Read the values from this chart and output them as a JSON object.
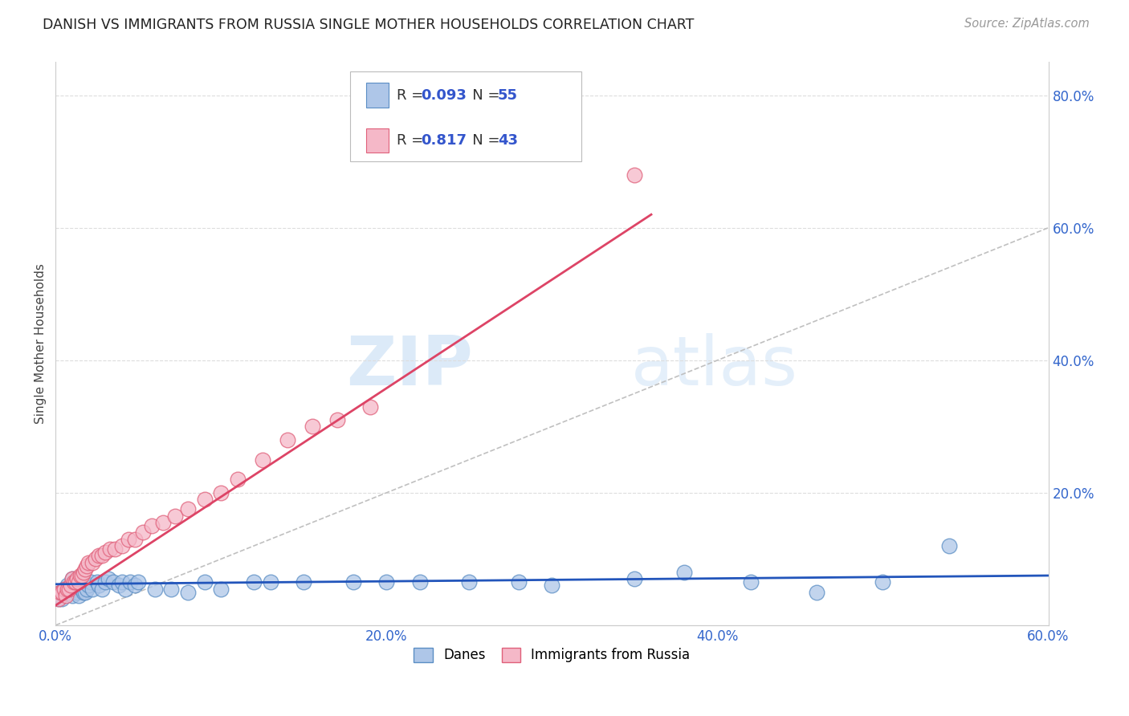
{
  "title": "DANISH VS IMMIGRANTS FROM RUSSIA SINGLE MOTHER HOUSEHOLDS CORRELATION CHART",
  "source": "Source: ZipAtlas.com",
  "ylabel": "Single Mother Households",
  "xlim": [
    0.0,
    0.6
  ],
  "ylim": [
    0.0,
    0.85
  ],
  "xtick_labels": [
    "0.0%",
    "",
    "20.0%",
    "",
    "40.0%",
    "",
    "60.0%"
  ],
  "xtick_vals": [
    0.0,
    0.1,
    0.2,
    0.3,
    0.4,
    0.5,
    0.6
  ],
  "ytick_labels_right": [
    "20.0%",
    "40.0%",
    "60.0%",
    "80.0%"
  ],
  "ytick_vals_right": [
    0.2,
    0.4,
    0.6,
    0.8
  ],
  "danes_color": "#aec6e8",
  "danes_edge_color": "#5b8ec4",
  "russia_color": "#f5b8c8",
  "russia_edge_color": "#e0607a",
  "danes_R": 0.093,
  "danes_N": 55,
  "russia_R": 0.817,
  "russia_N": 43,
  "danes_line_color": "#2255bb",
  "russia_line_color": "#dd4466",
  "diagonal_color": "#c0c0c0",
  "watermark_zip": "ZIP",
  "watermark_atlas": "atlas",
  "legend_color": "#3355cc",
  "background_color": "#ffffff",
  "grid_color": "#dddddd",
  "danes_scatter_x": [
    0.002,
    0.003,
    0.004,
    0.005,
    0.006,
    0.007,
    0.008,
    0.009,
    0.01,
    0.01,
    0.01,
    0.012,
    0.013,
    0.014,
    0.015,
    0.015,
    0.016,
    0.017,
    0.018,
    0.019,
    0.02,
    0.021,
    0.022,
    0.025,
    0.026,
    0.028,
    0.03,
    0.032,
    0.035,
    0.038,
    0.04,
    0.042,
    0.045,
    0.048,
    0.05,
    0.06,
    0.07,
    0.08,
    0.09,
    0.1,
    0.12,
    0.13,
    0.15,
    0.18,
    0.2,
    0.22,
    0.25,
    0.28,
    0.3,
    0.35,
    0.38,
    0.42,
    0.46,
    0.5,
    0.54
  ],
  "danes_scatter_y": [
    0.04,
    0.05,
    0.04,
    0.055,
    0.05,
    0.06,
    0.05,
    0.055,
    0.06,
    0.045,
    0.07,
    0.055,
    0.05,
    0.045,
    0.06,
    0.065,
    0.055,
    0.05,
    0.05,
    0.055,
    0.06,
    0.065,
    0.055,
    0.065,
    0.06,
    0.055,
    0.065,
    0.07,
    0.065,
    0.06,
    0.065,
    0.055,
    0.065,
    0.06,
    0.065,
    0.055,
    0.055,
    0.05,
    0.065,
    0.055,
    0.065,
    0.065,
    0.065,
    0.065,
    0.065,
    0.065,
    0.065,
    0.065,
    0.06,
    0.07,
    0.08,
    0.065,
    0.05,
    0.065,
    0.12
  ],
  "russia_scatter_x": [
    0.002,
    0.003,
    0.004,
    0.005,
    0.006,
    0.007,
    0.008,
    0.009,
    0.01,
    0.011,
    0.012,
    0.013,
    0.014,
    0.015,
    0.016,
    0.017,
    0.018,
    0.019,
    0.02,
    0.022,
    0.024,
    0.026,
    0.028,
    0.03,
    0.033,
    0.036,
    0.04,
    0.044,
    0.048,
    0.053,
    0.058,
    0.065,
    0.072,
    0.08,
    0.09,
    0.1,
    0.11,
    0.125,
    0.14,
    0.155,
    0.17,
    0.19,
    0.35
  ],
  "russia_scatter_y": [
    0.04,
    0.05,
    0.05,
    0.055,
    0.045,
    0.055,
    0.055,
    0.06,
    0.07,
    0.065,
    0.065,
    0.07,
    0.065,
    0.075,
    0.075,
    0.08,
    0.085,
    0.09,
    0.095,
    0.095,
    0.1,
    0.105,
    0.105,
    0.11,
    0.115,
    0.115,
    0.12,
    0.13,
    0.13,
    0.14,
    0.15,
    0.155,
    0.165,
    0.175,
    0.19,
    0.2,
    0.22,
    0.25,
    0.28,
    0.3,
    0.31,
    0.33,
    0.68
  ],
  "danes_line_x": [
    0.0,
    0.6
  ],
  "danes_line_y": [
    0.062,
    0.075
  ],
  "russia_line_x": [
    0.0,
    0.36
  ],
  "russia_line_y": [
    0.03,
    0.62
  ]
}
